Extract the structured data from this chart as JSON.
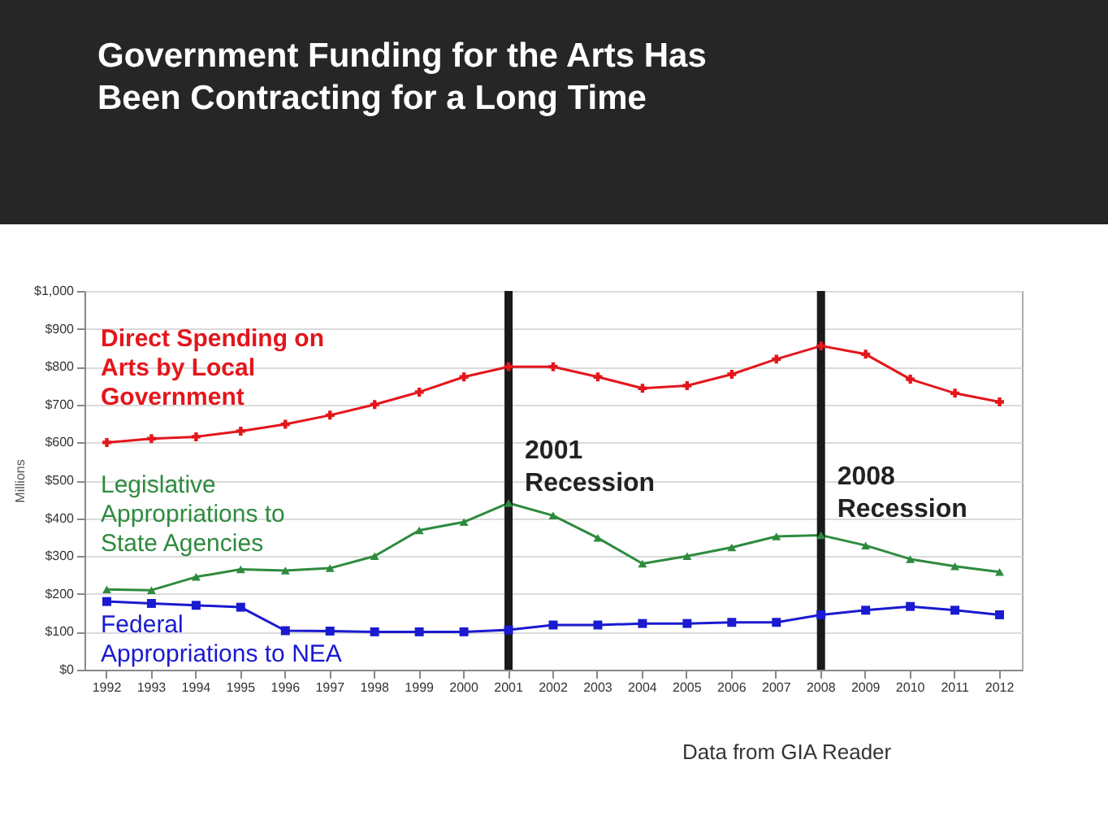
{
  "chart_data": {
    "type": "line",
    "title": "Government Funding for the Arts Has Been Contracting for a Long Time",
    "ylabel": "Millions",
    "categories": [
      "1992",
      "1993",
      "1994",
      "1995",
      "1996",
      "1997",
      "1998",
      "1999",
      "2000",
      "2001",
      "2002",
      "2003",
      "2004",
      "2005",
      "2006",
      "2007",
      "2008",
      "2009",
      "2010",
      "2011",
      "2012"
    ],
    "series": [
      {
        "name": "Direct Spending on Arts by Local Government",
        "color": "#e3161c",
        "marker": "cross",
        "values": [
          600,
          610,
          615,
          630,
          648,
          672,
          700,
          733,
          773,
          800,
          800,
          773,
          743,
          750,
          780,
          820,
          855,
          833,
          767,
          730,
          707
        ]
      },
      {
        "name": "Legislative Appropriations to State Agencies",
        "color": "#2e8b3e",
        "marker": "triangle",
        "values": [
          212,
          210,
          245,
          265,
          262,
          268,
          300,
          368,
          390,
          440,
          407,
          348,
          280,
          300,
          323,
          352,
          355,
          328,
          292,
          273,
          258
        ]
      },
      {
        "name": "Federal Appropriations to NEA",
        "color": "#1a1ad0",
        "marker": "square",
        "values": [
          180,
          175,
          170,
          165,
          103,
          102,
          100,
          100,
          100,
          105,
          118,
          118,
          122,
          122,
          125,
          125,
          145,
          157,
          167,
          157,
          145
        ]
      }
    ],
    "ylim": [
      0,
      1000
    ],
    "yticks": [
      {
        "value": 0,
        "label": "$0"
      },
      {
        "value": 100,
        "label": "$100"
      },
      {
        "value": 200,
        "label": "$200"
      },
      {
        "value": 300,
        "label": "$300"
      },
      {
        "value": 400,
        "label": "$400"
      },
      {
        "value": 500,
        "label": "$500"
      },
      {
        "value": 600,
        "label": "$600"
      },
      {
        "value": 700,
        "label": "$700"
      },
      {
        "value": 800,
        "label": "$800"
      },
      {
        "value": 900,
        "label": "$900"
      },
      {
        "value": 1000,
        "label": "$1,000"
      }
    ],
    "grid": "y",
    "legend": false,
    "line_style": "solid",
    "ref_lines": [
      {
        "axis": "x",
        "value": "2001",
        "label": "2001 Recession",
        "color": "#1a1a1a"
      },
      {
        "axis": "x",
        "value": "2008",
        "label": "2008 Recession",
        "color": "#1a1a1a"
      }
    ],
    "annotations": [
      "Data from GIA Reader"
    ]
  }
}
